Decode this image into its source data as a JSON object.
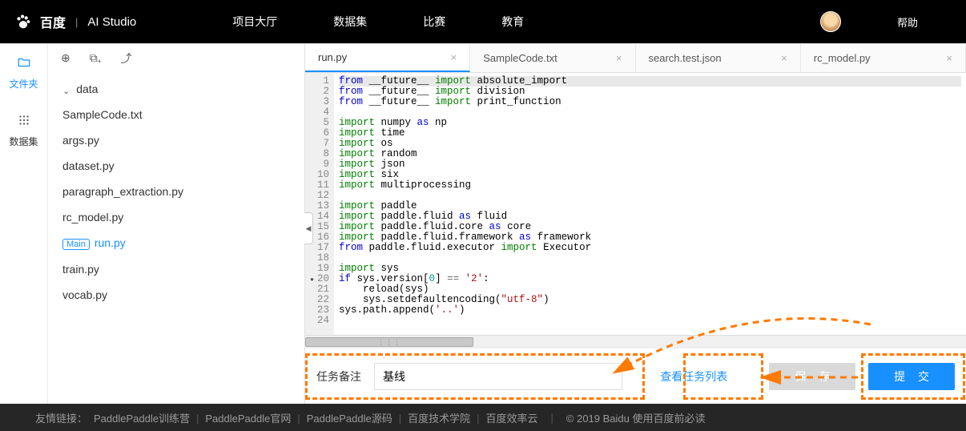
{
  "header": {
    "logo_brand": "百度",
    "logo_product": "AI Studio",
    "nav": [
      "项目大厅",
      "数据集",
      "比赛",
      "教育"
    ],
    "help_label": "帮助"
  },
  "left_rail": {
    "items": [
      {
        "label": "文件夹",
        "icon": "folder"
      },
      {
        "label": "数据集",
        "icon": "grid"
      }
    ]
  },
  "file_tree": {
    "folder_label": "data",
    "files": [
      {
        "name": "SampleCode.txt"
      },
      {
        "name": "args.py"
      },
      {
        "name": "dataset.py"
      },
      {
        "name": "paragraph_extraction.py"
      },
      {
        "name": "rc_model.py"
      },
      {
        "name": "run.py",
        "main": true,
        "active": true
      },
      {
        "name": "train.py"
      },
      {
        "name": "vocab.py"
      }
    ],
    "main_badge_text": "Main"
  },
  "tabs": [
    {
      "label": "run.py",
      "active": true
    },
    {
      "label": "SampleCode.txt"
    },
    {
      "label": "search.test.json"
    },
    {
      "label": "rc_model.py"
    }
  ],
  "code": {
    "lines": [
      {
        "n": 1,
        "tokens": [
          [
            "kw1",
            "from"
          ],
          [
            " __future__ "
          ],
          [
            "kw2",
            "import"
          ],
          [
            " absolute_import"
          ]
        ],
        "highlight": true
      },
      {
        "n": 2,
        "tokens": [
          [
            "kw1",
            "from"
          ],
          [
            " __future__ "
          ],
          [
            "kw2",
            "import"
          ],
          [
            " division"
          ]
        ]
      },
      {
        "n": 3,
        "tokens": [
          [
            "kw1",
            "from"
          ],
          [
            " __future__ "
          ],
          [
            "kw2",
            "import"
          ],
          [
            " print_function"
          ]
        ]
      },
      {
        "n": 4,
        "tokens": []
      },
      {
        "n": 5,
        "tokens": [
          [
            "kw2",
            "import"
          ],
          [
            " numpy "
          ],
          [
            "kw1",
            "as"
          ],
          [
            " np"
          ]
        ]
      },
      {
        "n": 6,
        "tokens": [
          [
            "kw2",
            "import"
          ],
          [
            " time"
          ]
        ]
      },
      {
        "n": 7,
        "tokens": [
          [
            "kw2",
            "import"
          ],
          [
            " os"
          ]
        ]
      },
      {
        "n": 8,
        "tokens": [
          [
            "kw2",
            "import"
          ],
          [
            " random"
          ]
        ]
      },
      {
        "n": 9,
        "tokens": [
          [
            "kw2",
            "import"
          ],
          [
            " json"
          ]
        ]
      },
      {
        "n": 10,
        "tokens": [
          [
            "kw2",
            "import"
          ],
          [
            " six"
          ]
        ]
      },
      {
        "n": 11,
        "tokens": [
          [
            "kw2",
            "import"
          ],
          [
            " multiprocessing"
          ]
        ]
      },
      {
        "n": 12,
        "tokens": []
      },
      {
        "n": 13,
        "tokens": [
          [
            "kw2",
            "import"
          ],
          [
            " paddle"
          ]
        ]
      },
      {
        "n": 14,
        "tokens": [
          [
            "kw2",
            "import"
          ],
          [
            " paddle.fluid "
          ],
          [
            "kw1",
            "as"
          ],
          [
            " fluid"
          ]
        ]
      },
      {
        "n": 15,
        "tokens": [
          [
            "kw2",
            "import"
          ],
          [
            " paddle.fluid.core "
          ],
          [
            "kw1",
            "as"
          ],
          [
            " core"
          ]
        ]
      },
      {
        "n": 16,
        "tokens": [
          [
            "kw2",
            "import"
          ],
          [
            " paddle.fluid.framework "
          ],
          [
            "kw1",
            "as"
          ],
          [
            " framework"
          ]
        ]
      },
      {
        "n": 17,
        "tokens": [
          [
            "kw1",
            "from"
          ],
          [
            " paddle.fluid.executor "
          ],
          [
            "kw2",
            "import"
          ],
          [
            " Executor"
          ]
        ]
      },
      {
        "n": 18,
        "tokens": []
      },
      {
        "n": 19,
        "tokens": [
          [
            "kw2",
            "import"
          ],
          [
            " sys"
          ]
        ]
      },
      {
        "n": 20,
        "bp": true,
        "tokens": [
          [
            "kw3",
            "if"
          ],
          [
            " sys.version["
          ],
          [
            "num",
            "0"
          ],
          [
            "] "
          ],
          [
            "op",
            "=="
          ],
          [
            " "
          ],
          [
            "str",
            "'2'"
          ],
          [
            ":"
          ]
        ]
      },
      {
        "n": 21,
        "tokens": [
          [
            "    reload(sys)"
          ]
        ]
      },
      {
        "n": 22,
        "tokens": [
          [
            "    sys.setdefaultencoding("
          ],
          [
            "str",
            "\"utf-8\""
          ],
          [
            ")"
          ]
        ]
      },
      {
        "n": 23,
        "tokens": [
          [
            "sys.path.append("
          ],
          [
            "str",
            "'..'"
          ],
          [
            ")"
          ]
        ]
      },
      {
        "n": 24,
        "tokens": []
      }
    ]
  },
  "bottom": {
    "task_label": "任务备注",
    "task_value": "基线",
    "view_tasks_label": "查看任务列表",
    "save_label": "保 存",
    "submit_label": "提 交"
  },
  "footer": {
    "prefix": "友情链接：",
    "links": [
      "PaddlePaddle训练营",
      "PaddlePaddle官网",
      "PaddlePaddle源码",
      "百度技术学院",
      "百度效率云"
    ],
    "copyright": "© 2019 Baidu 使用百度前必读"
  },
  "colors": {
    "primary": "#1890ff",
    "annotation": "#ff7a00",
    "header_bg": "#000000",
    "footer_bg": "#262626"
  }
}
